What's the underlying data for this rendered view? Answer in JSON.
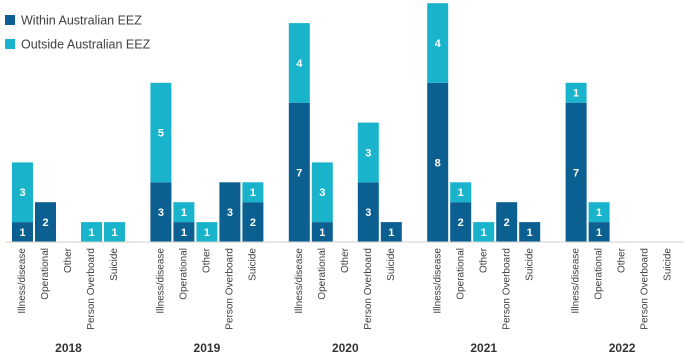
{
  "chart_data": {
    "type": "grouped-stacked-bar",
    "groups": [
      "2018",
      "2019",
      "2020",
      "2021",
      "2022"
    ],
    "categories": [
      "Illness/disease",
      "Operational",
      "Other",
      "Person Overboard",
      "Suicide",
      "Illness/disease",
      "Operational",
      "Other",
      "Person Overboard",
      "Suicide",
      "Illness/disease",
      "Operational",
      "Other",
      "Person Overboard",
      "Suicide",
      "Illness/disease",
      "Operational",
      "Other",
      "Person Overboard",
      "Suicide",
      "Illness/disease",
      "Operational",
      "Other",
      "Person Overboard",
      "Suicide"
    ],
    "series": [
      {
        "name": "Within Australian EEZ",
        "color": "#0b5f91",
        "values": [
          1,
          2,
          0,
          0,
          0,
          3,
          1,
          0,
          3,
          2,
          7,
          1,
          0,
          3,
          1,
          8,
          2,
          0,
          2,
          1,
          7,
          1,
          0,
          0,
          0
        ]
      },
      {
        "name": "Outside Australian EEZ",
        "color": "#19b4cc",
        "values": [
          3,
          0,
          0,
          1,
          1,
          5,
          1,
          1,
          0,
          1,
          4,
          3,
          0,
          3,
          0,
          4,
          1,
          1,
          0,
          0,
          1,
          1,
          0,
          0,
          0
        ]
      }
    ],
    "legend": "top-left"
  }
}
